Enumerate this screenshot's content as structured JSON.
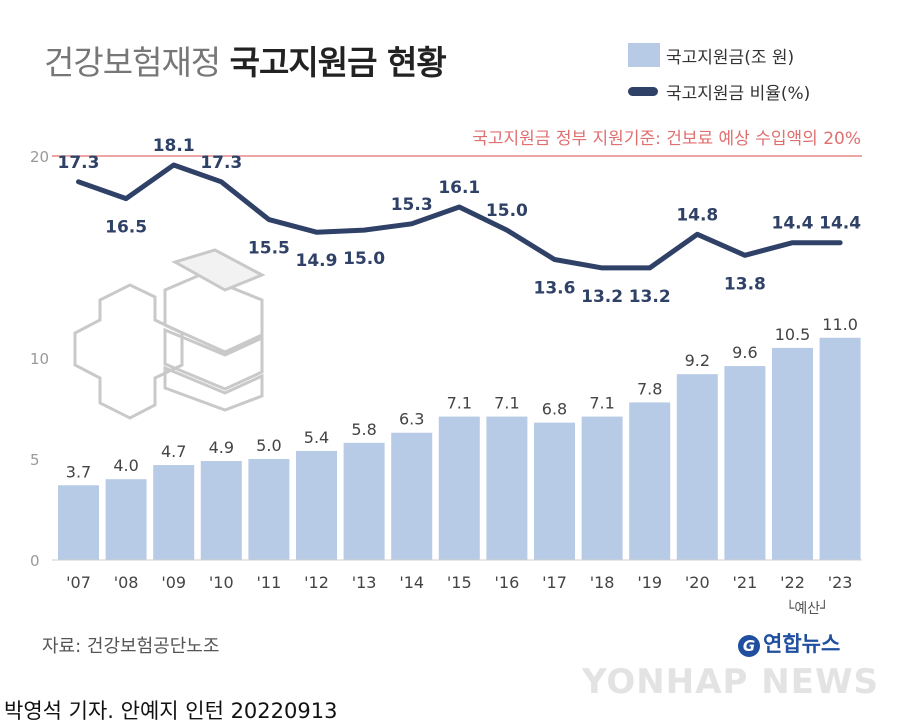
{
  "header": {
    "title_light": "건강보험재정",
    "title_bold": "국고지원금 현황"
  },
  "legend": {
    "bar_label": "국고지원금(조 원)",
    "line_label": "국고지원금 비율(%)"
  },
  "reference_line": {
    "value": 20,
    "label": "국고지원금 정부 지원기준: 건보료 예상 수입액의 20%"
  },
  "chart_data": {
    "type": "bar",
    "categories": [
      "'07",
      "'08",
      "'09",
      "'10",
      "'11",
      "'12",
      "'13",
      "'14",
      "'15",
      "'16",
      "'17",
      "'18",
      "'19",
      "'20",
      "'21",
      "'22",
      "'23"
    ],
    "series": [
      {
        "name": "국고지원금(조 원)",
        "type": "bar",
        "values": [
          3.7,
          4.0,
          4.7,
          4.9,
          5.0,
          5.4,
          5.8,
          6.3,
          7.1,
          7.1,
          6.8,
          7.1,
          7.8,
          9.2,
          9.6,
          10.5,
          11.0
        ]
      },
      {
        "name": "국고지원금 비율(%)",
        "type": "line",
        "values": [
          17.3,
          16.5,
          18.1,
          17.3,
          15.5,
          14.9,
          15.0,
          15.3,
          16.1,
          15.0,
          13.6,
          13.2,
          13.2,
          14.8,
          13.8,
          14.4,
          14.4
        ]
      }
    ],
    "y_ticks": [
      0,
      5,
      10,
      20
    ],
    "ylim": [
      0,
      20
    ],
    "grid": false,
    "colors": {
      "bar": "#b7cbe6",
      "line": "#2f4166",
      "reference": "#e07070",
      "axis_text": "#999999"
    }
  },
  "footer": {
    "source": "자료: 건강보험공단노조",
    "budget_note": "└예산┘",
    "logo_text": "연합뉴스",
    "logo_glyph": "G",
    "watermark": "YONHAP NEWS",
    "byline": "박영석 기자. 안예지 인턴  20220913"
  }
}
